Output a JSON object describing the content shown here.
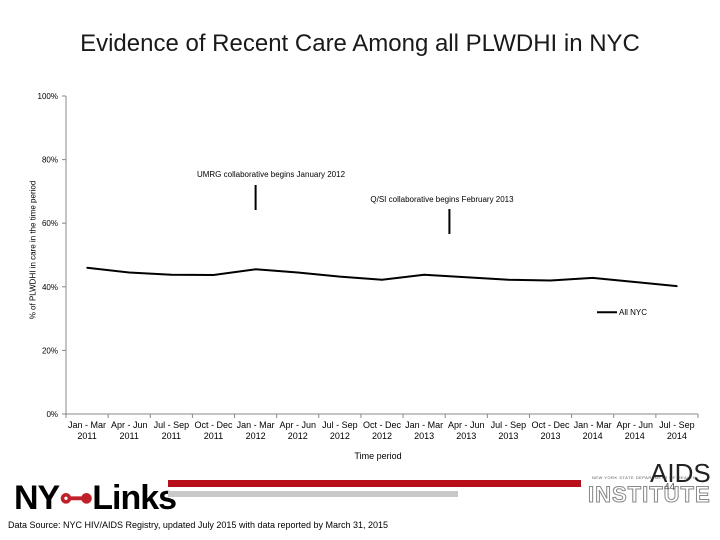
{
  "title": "Evidence of Recent Care Among all PLWDHI in NYC",
  "chart_data": {
    "type": "line",
    "title": "Evidence of Recent Care Among all PLWDHI in NYC",
    "xlabel": "Time period",
    "ylabel": "% of PLWDHI in care in the time period",
    "categories": [
      [
        "Jan - Mar",
        "2011"
      ],
      [
        "Apr - Jun",
        "2011"
      ],
      [
        "Jul - Sep",
        "2011"
      ],
      [
        "Oct - Dec",
        "2011"
      ],
      [
        "Jan - Mar",
        "2012"
      ],
      [
        "Apr - Jun",
        "2012"
      ],
      [
        "Jul - Sep",
        "2012"
      ],
      [
        "Oct - Dec",
        "2012"
      ],
      [
        "Jan - Mar",
        "2013"
      ],
      [
        "Apr - Jun",
        "2013"
      ],
      [
        "Jul - Sep",
        "2013"
      ],
      [
        "Oct - Dec",
        "2013"
      ],
      [
        "Jan - Mar",
        "2014"
      ],
      [
        "Apr - Jun",
        "2014"
      ],
      [
        "Jul - Sep",
        "2014"
      ]
    ],
    "series": [
      {
        "name": "All NYC",
        "color": "#000000",
        "values": [
          46,
          44.5,
          43.8,
          43.7,
          45.5,
          44.5,
          43.2,
          42.2,
          43.8,
          43,
          42.2,
          42,
          42.8,
          41.5,
          40.2
        ]
      }
    ],
    "yticks": [
      "0%",
      "20%",
      "40%",
      "60%",
      "80%",
      "100%"
    ],
    "ylim": [
      0,
      100
    ],
    "legend": "right",
    "annotations": [
      {
        "text": "UMRG collaborative begins January 2012",
        "category_index": 4
      },
      {
        "text": "Q/SI collaborative begins February 2013",
        "category_index": 8.6
      }
    ]
  },
  "footer": {
    "logo_part1": "NY",
    "logo_part2": "Links",
    "source": "Data Source: NYC HIV/AIDS Registry, updated July 2015 with data reported by March 31, 2015",
    "org_small": "NEW YORK STATE DEPARTMENT OF HEALTH",
    "org_name": "AIDS",
    "org_sub": "INSTITUTE",
    "page": "44"
  }
}
